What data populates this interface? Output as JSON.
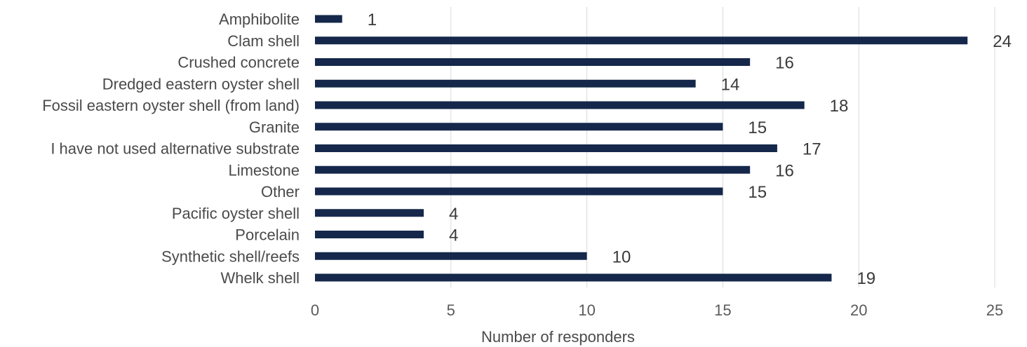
{
  "chart_data": {
    "type": "bar",
    "orientation": "horizontal",
    "categories": [
      "Amphibolite",
      "Clam shell",
      "Crushed concrete",
      "Dredged eastern oyster shell",
      "Fossil eastern oyster shell (from land)",
      "Granite",
      "I have not used alternative substrate",
      "Limestone",
      "Other",
      "Pacific oyster shell",
      "Porcelain",
      "Synthetic shell/reefs",
      "Whelk shell"
    ],
    "values": [
      1,
      24,
      16,
      14,
      18,
      15,
      17,
      16,
      15,
      4,
      4,
      10,
      19
    ],
    "xlabel": "Number of responders",
    "ylabel": "",
    "xlim": [
      0,
      25
    ],
    "xticks": [
      "0",
      "5",
      "10",
      "15",
      "20",
      "25"
    ],
    "grid": "vertical",
    "bar_color": "#15284b",
    "legend": "none"
  }
}
